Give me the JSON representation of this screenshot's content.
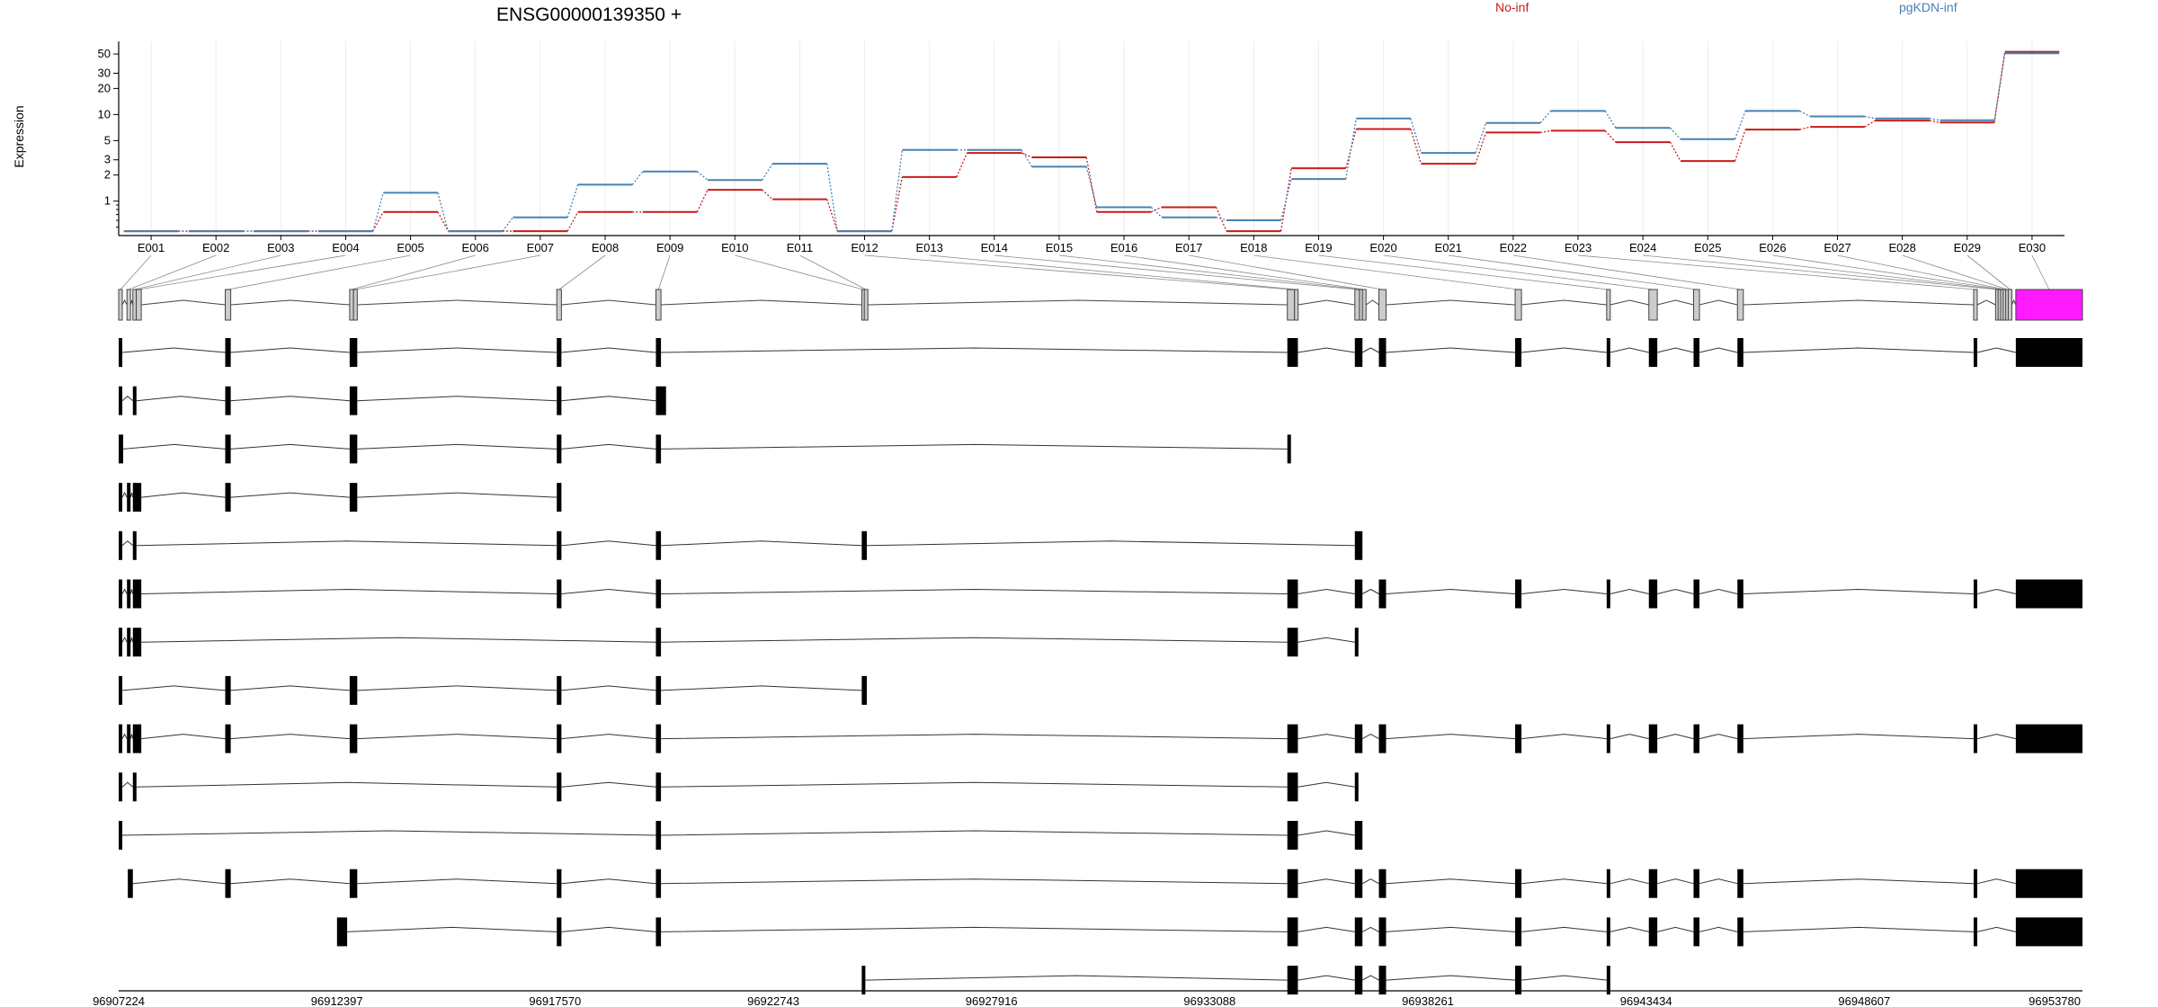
{
  "chart_data": {
    "type": "line",
    "title": "ENSG00000139350 +",
    "ylabel": "Expression",
    "yscale": "log",
    "ylim": [
      0.4,
      70
    ],
    "yticks": [
      1,
      2,
      3,
      5,
      10,
      20,
      30,
      50
    ],
    "ytick_labels": [
      "1",
      "2",
      "3",
      "5",
      "10",
      "20",
      "30",
      "50"
    ],
    "grid": "vertical",
    "legend": "top",
    "categories": [
      "E001",
      "E002",
      "E003",
      "E004",
      "E005",
      "E006",
      "E007",
      "E008",
      "E009",
      "E010",
      "E011",
      "E012",
      "E013",
      "E014",
      "E015",
      "E016",
      "E017",
      "E018",
      "E019",
      "E020",
      "E021",
      "E022",
      "E023",
      "E024",
      "E025",
      "E026",
      "E027",
      "E028",
      "E029",
      "E030"
    ],
    "series": [
      {
        "name": "No-inf",
        "color": "#cc1a1a",
        "values": [
          0.45,
          0.45,
          0.45,
          0.45,
          0.75,
          0.45,
          0.45,
          0.75,
          0.75,
          1.35,
          1.05,
          0.45,
          1.9,
          3.6,
          3.2,
          0.75,
          0.85,
          0.45,
          2.4,
          6.8,
          2.7,
          6.2,
          6.5,
          4.8,
          2.9,
          6.7,
          7.2,
          8.5,
          8.1,
          53
        ]
      },
      {
        "name": "pgKDN-inf",
        "color": "#4682b4",
        "values": [
          0.45,
          0.45,
          0.45,
          0.45,
          1.25,
          0.45,
          0.65,
          1.55,
          2.2,
          1.75,
          2.7,
          0.45,
          3.9,
          3.9,
          2.5,
          0.85,
          0.65,
          0.6,
          1.8,
          9.0,
          3.6,
          8.0,
          11.0,
          7.0,
          5.2,
          11.0,
          9.5,
          9.0,
          8.6,
          51
        ]
      }
    ],
    "gene_structure": {
      "strand": "+",
      "coord_range": [
        96907224,
        96953780
      ],
      "coord_ticks": [
        "96907224",
        "96912397",
        "96917570",
        "96922743",
        "96927916",
        "96933088",
        "96938261",
        "96943434",
        "96948607",
        "96953780"
      ],
      "highlighted_exon": "E030",
      "highlight_color": "#ff1aff",
      "exons": [
        {
          "id": "E001",
          "start": 96907224,
          "end": 96907300
        },
        {
          "id": "E002",
          "start": 96907420,
          "end": 96907490
        },
        {
          "id": "E003",
          "start": 96907560,
          "end": 96907640
        },
        {
          "id": "E004",
          "start": 96907640,
          "end": 96907760
        },
        {
          "id": "E005",
          "start": 96909750,
          "end": 96909880
        },
        {
          "id": "E006",
          "start": 96912700,
          "end": 96912790
        },
        {
          "id": "E007",
          "start": 96912790,
          "end": 96912880
        },
        {
          "id": "E008",
          "start": 96917610,
          "end": 96917720
        },
        {
          "id": "E009",
          "start": 96919960,
          "end": 96920080
        },
        {
          "id": "E010",
          "start": 96924840,
          "end": 96924900
        },
        {
          "id": "E011",
          "start": 96924900,
          "end": 96924960
        },
        {
          "id": "E012",
          "start": 96934930,
          "end": 96935100
        },
        {
          "id": "E013",
          "start": 96935100,
          "end": 96935180
        },
        {
          "id": "E014",
          "start": 96936530,
          "end": 96936640
        },
        {
          "id": "E015",
          "start": 96936640,
          "end": 96936710
        },
        {
          "id": "E016",
          "start": 96936710,
          "end": 96936770
        },
        {
          "id": "E017",
          "start": 96937100,
          "end": 96937270
        },
        {
          "id": "E018",
          "start": 96940330,
          "end": 96940480
        },
        {
          "id": "E019",
          "start": 96942500,
          "end": 96942560
        },
        {
          "id": "E020",
          "start": 96943500,
          "end": 96943700
        },
        {
          "id": "E021",
          "start": 96944560,
          "end": 96944700
        },
        {
          "id": "E022",
          "start": 96945600,
          "end": 96945740
        },
        {
          "id": "E023",
          "start": 96951200,
          "end": 96951260
        },
        {
          "id": "E024",
          "start": 96951720,
          "end": 96951780
        },
        {
          "id": "E025",
          "start": 96951780,
          "end": 96951840
        },
        {
          "id": "E026",
          "start": 96951840,
          "end": 96951900
        },
        {
          "id": "E027",
          "start": 96951900,
          "end": 96951960
        },
        {
          "id": "E028",
          "start": 96951960,
          "end": 96952020
        },
        {
          "id": "E029",
          "start": 96952020,
          "end": 96952080
        },
        {
          "id": "E030",
          "start": 96952200,
          "end": 96953780
        }
      ],
      "transcripts": [
        [
          [
            96907224,
            96907290
          ],
          [
            96909750,
            96909880
          ],
          [
            96912700,
            96912880
          ],
          [
            96917610,
            96917720
          ],
          [
            96919960,
            96920080
          ],
          [
            96934930,
            96935180
          ],
          [
            96936530,
            96936710
          ],
          [
            96937100,
            96937270
          ],
          [
            96940330,
            96940480
          ],
          [
            96942500,
            96942560
          ],
          [
            96943500,
            96943700
          ],
          [
            96944560,
            96944700
          ],
          [
            96945600,
            96945740
          ],
          [
            96951200,
            96951260
          ],
          [
            96952200,
            96953780
          ]
        ],
        [
          [
            96907224,
            96907290
          ],
          [
            96907560,
            96907640
          ],
          [
            96909750,
            96909880
          ],
          [
            96912700,
            96912880
          ],
          [
            96917610,
            96917720
          ],
          [
            96919960,
            96920200
          ]
        ],
        [
          [
            96907224,
            96907330
          ],
          [
            96909750,
            96909880
          ],
          [
            96912700,
            96912880
          ],
          [
            96917610,
            96917720
          ],
          [
            96919960,
            96920080
          ],
          [
            96934930,
            96934970
          ]
        ],
        [
          [
            96907224,
            96907290
          ],
          [
            96907420,
            96907490
          ],
          [
            96907560,
            96907760
          ],
          [
            96909750,
            96909880
          ],
          [
            96912700,
            96912880
          ],
          [
            96917610,
            96917720
          ]
        ],
        [
          [
            96907224,
            96907290
          ],
          [
            96907560,
            96907640
          ],
          [
            96917610,
            96917720
          ],
          [
            96919960,
            96920080
          ],
          [
            96924840,
            96924960
          ],
          [
            96936530,
            96936710
          ]
        ],
        [
          [
            96907224,
            96907290
          ],
          [
            96907420,
            96907490
          ],
          [
            96907560,
            96907760
          ],
          [
            96917610,
            96917720
          ],
          [
            96919960,
            96920080
          ],
          [
            96934930,
            96935180
          ],
          [
            96936530,
            96936710
          ],
          [
            96937100,
            96937270
          ],
          [
            96940330,
            96940480
          ],
          [
            96942500,
            96942560
          ],
          [
            96943500,
            96943700
          ],
          [
            96944560,
            96944700
          ],
          [
            96945600,
            96945740
          ],
          [
            96951200,
            96951260
          ],
          [
            96952200,
            96953780
          ]
        ],
        [
          [
            96907224,
            96907290
          ],
          [
            96907420,
            96907490
          ],
          [
            96907560,
            96907760
          ],
          [
            96919960,
            96920080
          ],
          [
            96934930,
            96935180
          ],
          [
            96936530,
            96936580
          ]
        ],
        [
          [
            96907224,
            96907290
          ],
          [
            96909750,
            96909880
          ],
          [
            96912700,
            96912880
          ],
          [
            96917610,
            96917720
          ],
          [
            96919960,
            96920080
          ],
          [
            96924840,
            96924960
          ]
        ],
        [
          [
            96907224,
            96907290
          ],
          [
            96907420,
            96907490
          ],
          [
            96907560,
            96907760
          ],
          [
            96909750,
            96909880
          ],
          [
            96912700,
            96912880
          ],
          [
            96917610,
            96917720
          ],
          [
            96919960,
            96920080
          ],
          [
            96934930,
            96935180
          ],
          [
            96936530,
            96936710
          ],
          [
            96937100,
            96937270
          ],
          [
            96940330,
            96940480
          ],
          [
            96942500,
            96942560
          ],
          [
            96943500,
            96943700
          ],
          [
            96944560,
            96944700
          ],
          [
            96945600,
            96945740
          ],
          [
            96951200,
            96951260
          ],
          [
            96952200,
            96953780
          ]
        ],
        [
          [
            96907224,
            96907290
          ],
          [
            96907560,
            96907640
          ],
          [
            96917610,
            96917720
          ],
          [
            96919960,
            96920080
          ],
          [
            96934930,
            96935180
          ],
          [
            96936530,
            96936580
          ]
        ],
        [
          [
            96907224,
            96907290
          ],
          [
            96919960,
            96920080
          ],
          [
            96934930,
            96935180
          ],
          [
            96936530,
            96936710
          ]
        ],
        [
          [
            96907440,
            96907560
          ],
          [
            96909750,
            96909880
          ],
          [
            96912700,
            96912880
          ],
          [
            96917610,
            96917720
          ],
          [
            96919960,
            96920080
          ],
          [
            96934930,
            96935180
          ],
          [
            96936530,
            96936710
          ],
          [
            96937100,
            96937270
          ],
          [
            96940330,
            96940480
          ],
          [
            96942500,
            96942560
          ],
          [
            96943500,
            96943700
          ],
          [
            96944560,
            96944700
          ],
          [
            96945600,
            96945740
          ],
          [
            96951200,
            96951260
          ],
          [
            96952200,
            96953780
          ]
        ],
        [
          [
            96912400,
            96912640
          ],
          [
            96917610,
            96917720
          ],
          [
            96919960,
            96920080
          ],
          [
            96934930,
            96935180
          ],
          [
            96936530,
            96936710
          ],
          [
            96937100,
            96937270
          ],
          [
            96940330,
            96940480
          ],
          [
            96942500,
            96942560
          ],
          [
            96943500,
            96943700
          ],
          [
            96944560,
            96944700
          ],
          [
            96945600,
            96945740
          ],
          [
            96951200,
            96951260
          ],
          [
            96952200,
            96953780
          ]
        ],
        [
          [
            96924840,
            96924900
          ],
          [
            96934930,
            96935180
          ],
          [
            96936530,
            96936710
          ],
          [
            96937100,
            96937270
          ],
          [
            96940330,
            96940480
          ],
          [
            96942500,
            96942560
          ]
        ]
      ]
    }
  }
}
